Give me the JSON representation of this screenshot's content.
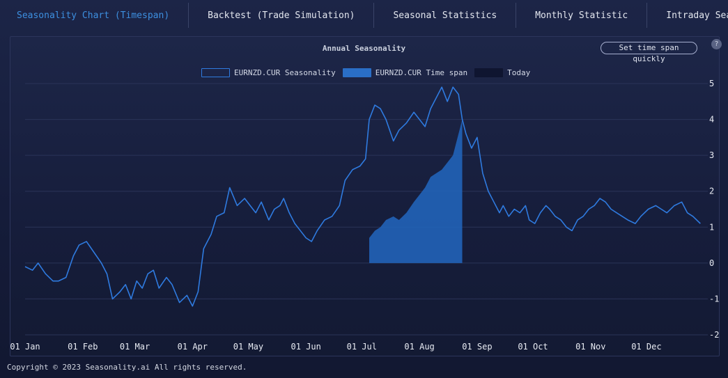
{
  "tabs": [
    {
      "label": "Seasonality Chart (Timespan)",
      "active": true
    },
    {
      "label": "Backtest (Trade Simulation)",
      "active": false
    },
    {
      "label": "Seasonal Statistics",
      "active": false
    },
    {
      "label": "Monthly Statistic",
      "active": false
    },
    {
      "label": "Intraday Seasonality Chart",
      "active": false
    }
  ],
  "quick_button": "Set time span quickly",
  "help_icon": "?",
  "copyright": "Copyright © 2023 Seasonality.ai All rights reserved.",
  "colors": {
    "line": "#2f7be0",
    "fill": "#2163b8",
    "grid": "#2a3458",
    "background": "#172041"
  },
  "chart_data": {
    "type": "line",
    "title": "Annual Seasonality",
    "legend": [
      {
        "name": "EURNZD.CUR Seasonality",
        "style": "line"
      },
      {
        "name": "EURNZD.CUR Time span",
        "style": "area"
      },
      {
        "name": "Today",
        "style": "marker"
      }
    ],
    "legend_position": "top-center",
    "grid": true,
    "y_axis_side": "right",
    "ylim": [
      -2,
      5
    ],
    "yticks": [
      "5",
      "4",
      "3",
      "2",
      "1",
      "0",
      "-1",
      "-2"
    ],
    "xticks": [
      "01 Jan",
      "01 Feb",
      "01 Mar",
      "01 Apr",
      "01 May",
      "01 Jun",
      "01 Jul",
      "01 Aug",
      "01 Sep",
      "01 Oct",
      "01 Nov",
      "01 Dec"
    ],
    "xtick_days": [
      1,
      32,
      60,
      91,
      121,
      152,
      182,
      213,
      244,
      274,
      305,
      335
    ],
    "series": [
      {
        "name": "EURNZD.CUR Seasonality",
        "x_day_of_year": [
          1,
          5,
          8,
          12,
          16,
          19,
          23,
          27,
          30,
          34,
          38,
          42,
          45,
          48,
          52,
          55,
          58,
          61,
          64,
          67,
          70,
          73,
          77,
          80,
          84,
          88,
          91,
          94,
          97,
          101,
          104,
          108,
          111,
          115,
          119,
          122,
          125,
          128,
          132,
          135,
          138,
          140,
          143,
          146,
          149,
          152,
          155,
          158,
          162,
          166,
          170,
          173,
          177,
          181,
          184,
          186,
          189,
          192,
          195,
          199,
          202,
          206,
          210,
          213,
          216,
          219,
          222,
          225,
          228,
          231,
          234,
          236,
          238,
          241,
          244,
          247,
          250,
          253,
          256,
          258,
          261,
          264,
          267,
          270,
          272,
          275,
          278,
          281,
          283,
          286,
          289,
          292,
          295,
          298,
          301,
          304,
          307,
          310,
          313,
          316,
          319,
          322,
          325,
          329,
          332,
          336,
          340,
          343,
          346,
          350,
          354,
          357,
          360,
          364
        ],
        "y": [
          -0.1,
          -0.2,
          0.0,
          -0.3,
          -0.5,
          -0.5,
          -0.4,
          0.2,
          0.5,
          0.6,
          0.3,
          0.0,
          -0.3,
          -1.0,
          -0.8,
          -0.6,
          -1.0,
          -0.5,
          -0.7,
          -0.3,
          -0.2,
          -0.7,
          -0.4,
          -0.6,
          -1.1,
          -0.9,
          -1.2,
          -0.8,
          0.4,
          0.8,
          1.3,
          1.4,
          2.1,
          1.6,
          1.8,
          1.6,
          1.4,
          1.7,
          1.2,
          1.5,
          1.6,
          1.8,
          1.4,
          1.1,
          0.9,
          0.7,
          0.6,
          0.9,
          1.2,
          1.3,
          1.6,
          2.3,
          2.6,
          2.7,
          2.9,
          4.0,
          4.4,
          4.3,
          4.0,
          3.4,
          3.7,
          3.9,
          4.2,
          4.0,
          3.8,
          4.3,
          4.6,
          4.9,
          4.5,
          4.9,
          4.7,
          4.0,
          3.6,
          3.2,
          3.5,
          2.5,
          2.0,
          1.7,
          1.4,
          1.6,
          1.3,
          1.5,
          1.4,
          1.6,
          1.2,
          1.1,
          1.4,
          1.6,
          1.5,
          1.3,
          1.2,
          1.0,
          0.9,
          1.2,
          1.3,
          1.5,
          1.6,
          1.8,
          1.7,
          1.5,
          1.4,
          1.3,
          1.2,
          1.1,
          1.3,
          1.5,
          1.6,
          1.5,
          1.4,
          1.6,
          1.7,
          1.4,
          1.3,
          1.1
        ]
      },
      {
        "name": "EURNZD.CUR Time span",
        "x_day_of_year": [
          186,
          189,
          192,
          195,
          199,
          202,
          206,
          210,
          213,
          216,
          219,
          222,
          225,
          228,
          231,
          234,
          236
        ],
        "y": [
          0.7,
          0.9,
          1.0,
          1.2,
          1.3,
          1.2,
          1.4,
          1.7,
          1.9,
          2.1,
          2.4,
          2.5,
          2.6,
          2.8,
          3.0,
          3.6,
          4.0
        ]
      }
    ]
  }
}
